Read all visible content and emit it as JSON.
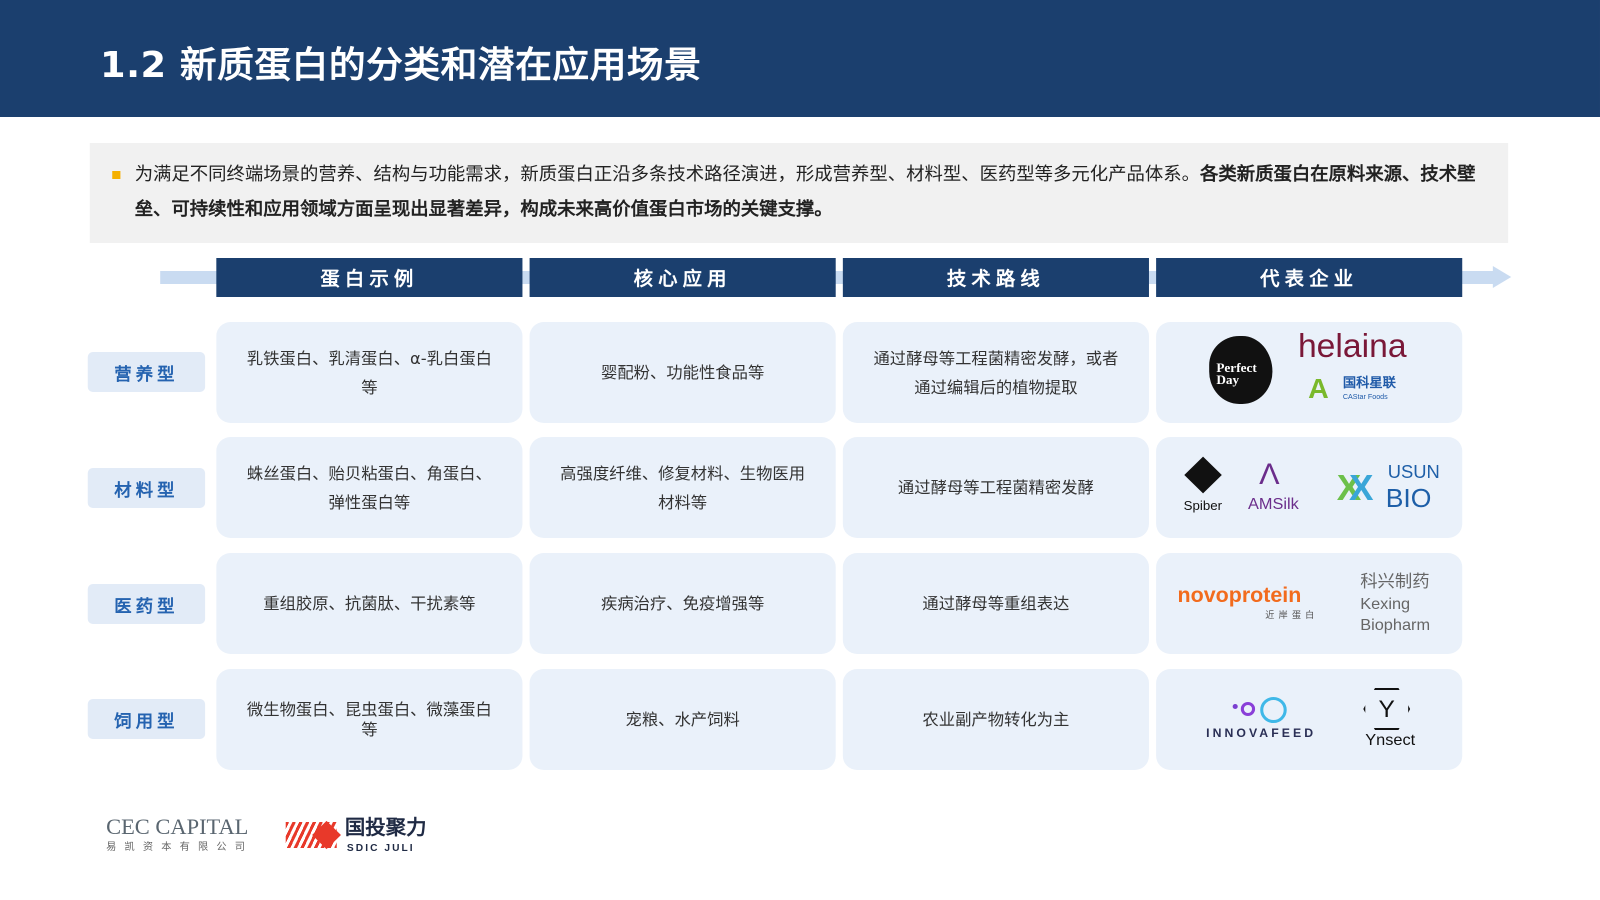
{
  "title": "1.2 新质蛋白的分类和潜在应用场景",
  "intro": {
    "normal": "为满足不同终端场景的营养、结构与功能需求，新质蛋白正沿多条技术路径演进，形成营养型、材料型、医药型等多元化产品体系。",
    "bold": "各类新质蛋白在原料来源、技术壁垒、可持续性和应用领域方面呈现出显著差异，构成未来高价值蛋白市场的关键支撑。"
  },
  "columns": [
    "蛋白示例",
    "核心应用",
    "技术路线",
    "代表企业"
  ],
  "rows": [
    {
      "label": "营养型",
      "examples": "乳铁蛋白、乳清蛋白、α-乳白蛋白等",
      "application": "婴配粉、功能性食品等",
      "tech": "通过酵母等工程菌精密发酵，或者通过编辑后的植物提取",
      "companies": [
        "Perfect Day",
        "helaina",
        "国科星联",
        "CAStar Foods"
      ]
    },
    {
      "label": "材料型",
      "examples": "蛛丝蛋白、贻贝粘蛋白、角蛋白、弹性蛋白等",
      "application": "高强度纤维、修复材料、生物医用材料等",
      "tech": "通过酵母等工程菌精密发酵",
      "companies": [
        "Spiber",
        "AMSilk",
        "USUN",
        "BIO"
      ]
    },
    {
      "label": "医药型",
      "examples": "重组胶原、抗菌肽、干扰素等",
      "application": "疾病治疗、免疫增强等",
      "tech": "通过酵母等重组表达",
      "companies": [
        "novoprotein",
        "近岸蛋白",
        "科兴制药",
        "Kexing",
        "Biopharm"
      ]
    },
    {
      "label": "饲用型",
      "examples": "微生物蛋白、昆虫蛋白、微藻蛋白等",
      "application": "宠粮、水产饲料",
      "tech": "农业副产物转化为主",
      "companies": [
        "INNOVAFEED",
        "Ynsect"
      ]
    }
  ],
  "footer": {
    "cec": "CEC CAPITAL",
    "cec_cn": "易凯资本有限公司",
    "sdic_cn": "国投聚力",
    "sdic_en": "SDIC JULI"
  },
  "colors": {
    "header": "#1b3f6e",
    "cell": "#eaf1fa",
    "label": "#2563b0",
    "bullet": "#f5b000"
  }
}
